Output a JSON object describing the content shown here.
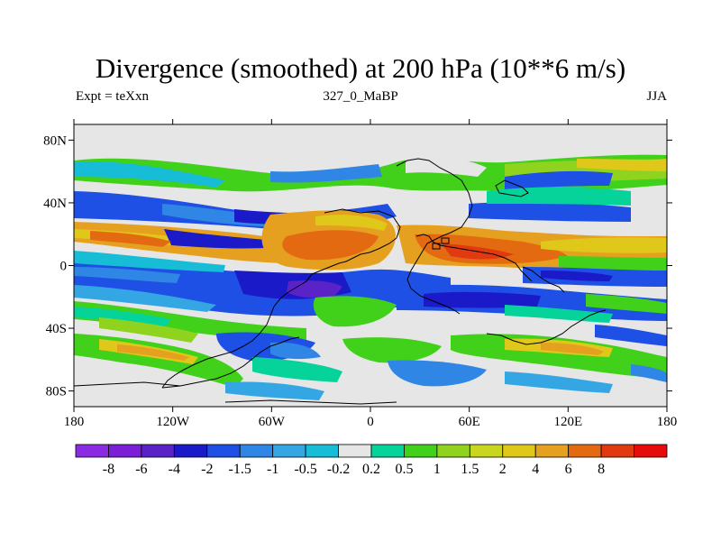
{
  "title": "Divergence (smoothed) at 200 hPa (10**6 m/s)",
  "left_label": "Expt = teXxn",
  "center_label": "327_0_MaBP",
  "right_label": "JJA",
  "map": {
    "lat_ticks": [
      {
        "value": 80,
        "label": "80N"
      },
      {
        "value": 40,
        "label": "40N"
      },
      {
        "value": 0,
        "label": "0"
      },
      {
        "value": -40,
        "label": "40S"
      },
      {
        "value": -80,
        "label": "80S"
      }
    ],
    "lon_ticks": [
      {
        "value": -180,
        "label": "180"
      },
      {
        "value": -120,
        "label": "120W"
      },
      {
        "value": -60,
        "label": "60W"
      },
      {
        "value": 0,
        "label": "0"
      },
      {
        "value": 60,
        "label": "60E"
      },
      {
        "value": 120,
        "label": "120E"
      },
      {
        "value": 180,
        "label": "180"
      }
    ],
    "lat_range": [
      -90,
      90
    ],
    "lon_range": [
      -180,
      180
    ]
  },
  "colorbar": {
    "colors": [
      "#8a2be2",
      "#7a1fd6",
      "#5a23c8",
      "#1a1ac8",
      "#1e50e6",
      "#2f86e4",
      "#35a6e4",
      "#17bcd6",
      "#e6e6e6",
      "#06d39a",
      "#41d11a",
      "#8fd31f",
      "#c8d61f",
      "#e0c81a",
      "#e6a020",
      "#e46a12",
      "#e23a10",
      "#e60c0c"
    ],
    "labels": [
      "-8",
      "-6",
      "-4",
      "-2",
      "-1.5",
      "-1",
      "-0.5",
      "-0.2",
      "0.2",
      "0.5",
      "1",
      "1.5",
      "2",
      "4",
      "6",
      "8"
    ]
  }
}
